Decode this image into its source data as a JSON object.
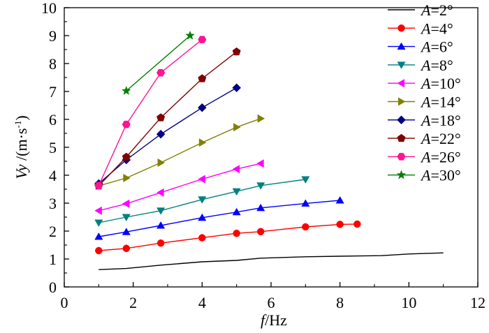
{
  "chart_data": {
    "type": "line",
    "title": "",
    "xlabel": "f/Hz",
    "xlabel_italic_part": "f",
    "xlabel_rest": "/Hz",
    "ylabel_italic_part": "Vy",
    "ylabel_rest": " /(m·s",
    "ylabel_sup": "-1",
    "ylabel_close": ")",
    "xlim": [
      0,
      12
    ],
    "ylim": [
      0,
      10
    ],
    "xticks": [
      0,
      2,
      4,
      6,
      8,
      10,
      12
    ],
    "yticks": [
      0,
      1,
      2,
      3,
      4,
      5,
      6,
      7,
      8,
      9,
      10
    ],
    "grid": false,
    "legend_position": "top-right",
    "series": [
      {
        "name": "A=2°",
        "label_var": "A",
        "label_val": "=2°",
        "color": "#000000",
        "marker": "none",
        "x": [
          1,
          1.8,
          2.8,
          4,
          5,
          5.7,
          7,
          8,
          9.2,
          10,
          11
        ],
        "y": [
          0.62,
          0.66,
          0.78,
          0.9,
          0.95,
          1.03,
          1.08,
          1.1,
          1.12,
          1.18,
          1.22
        ]
      },
      {
        "name": "A=4°",
        "label_var": "A",
        "label_val": "=4°",
        "color": "#ff0000",
        "marker": "circle",
        "x": [
          1,
          1.8,
          2.8,
          4,
          5,
          5.7,
          7,
          8,
          8.5
        ],
        "y": [
          1.3,
          1.38,
          1.57,
          1.76,
          1.92,
          1.98,
          2.15,
          2.24,
          2.25
        ]
      },
      {
        "name": "A=6°",
        "label_var": "A",
        "label_val": "=6°",
        "color": "#0000ff",
        "marker": "triangle-up",
        "x": [
          1,
          1.8,
          2.8,
          4,
          5,
          5.7,
          7,
          8
        ],
        "y": [
          1.8,
          1.97,
          2.2,
          2.48,
          2.68,
          2.83,
          2.99,
          3.1
        ]
      },
      {
        "name": "A=8°",
        "label_var": "A",
        "label_val": "=8°",
        "color": "#008080",
        "marker": "triangle-down",
        "x": [
          1,
          1.8,
          2.8,
          4,
          5,
          5.7,
          7
        ],
        "y": [
          2.3,
          2.5,
          2.73,
          3.13,
          3.42,
          3.63,
          3.85
        ]
      },
      {
        "name": "A=10°",
        "label_var": "A",
        "label_val": "=10°",
        "color": "#ff00ff",
        "marker": "triangle-left",
        "x": [
          1,
          1.8,
          2.8,
          4,
          5,
          5.7
        ],
        "y": [
          2.73,
          2.98,
          3.38,
          3.86,
          4.22,
          4.42
        ]
      },
      {
        "name": "A=14°",
        "label_var": "A",
        "label_val": "=14°",
        "color": "#808000",
        "marker": "triangle-right",
        "x": [
          1,
          1.8,
          2.8,
          4,
          5,
          5.7
        ],
        "y": [
          3.62,
          3.9,
          4.45,
          5.17,
          5.72,
          6.03
        ]
      },
      {
        "name": "A=18°",
        "label_var": "A",
        "label_val": "=18°",
        "color": "#000080",
        "marker": "diamond",
        "x": [
          1,
          1.8,
          2.8,
          4,
          5
        ],
        "y": [
          3.7,
          4.55,
          5.47,
          6.42,
          7.13
        ]
      },
      {
        "name": "A=22°",
        "label_var": "A",
        "label_val": "=22°",
        "color": "#800000",
        "marker": "pentagon",
        "x": [
          1,
          1.8,
          2.8,
          4,
          5
        ],
        "y": [
          3.62,
          4.65,
          6.06,
          7.46,
          8.42
        ]
      },
      {
        "name": "A=26°",
        "label_var": "A",
        "label_val": "=26°",
        "color": "#ff1493",
        "marker": "hexagon",
        "x": [
          1,
          1.8,
          2.8,
          4
        ],
        "y": [
          3.63,
          5.82,
          7.67,
          8.86
        ]
      },
      {
        "name": "A=30°",
        "label_var": "A",
        "label_val": "=30°",
        "color": "#008000",
        "marker": "star",
        "x": [
          1.8,
          3.65
        ],
        "y": [
          7.02,
          9.0
        ]
      }
    ]
  }
}
